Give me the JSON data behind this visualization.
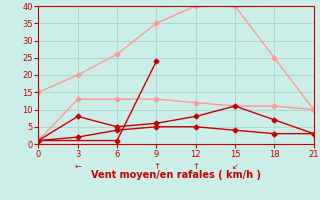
{
  "xlabel": "Vent moyen/en rafales ( km/h )",
  "background_color": "#cceee8",
  "grid_color": "#aad8d0",
  "xlim": [
    0,
    21
  ],
  "ylim": [
    0,
    40
  ],
  "xticks": [
    0,
    3,
    6,
    9,
    12,
    15,
    18,
    21
  ],
  "yticks": [
    0,
    5,
    10,
    15,
    20,
    25,
    30,
    35,
    40
  ],
  "line_light_high": {
    "x": [
      0,
      3,
      6,
      9,
      12,
      15,
      18,
      21
    ],
    "y": [
      15,
      20,
      26,
      35,
      40,
      40,
      25,
      10
    ],
    "color": "#ff9999",
    "lw": 1.0
  },
  "line_light_flat": {
    "x": [
      0,
      3,
      6,
      9,
      12,
      15,
      18,
      21
    ],
    "y": [
      1,
      13,
      13,
      13,
      12,
      11,
      11,
      10
    ],
    "color": "#ff9999",
    "lw": 1.0
  },
  "line_dark_spike": {
    "x": [
      0,
      6,
      9
    ],
    "y": [
      1,
      1,
      24
    ],
    "color": "#cc0000",
    "lw": 1.0
  },
  "line_dark_mid": {
    "x": [
      0,
      3,
      6,
      9,
      12,
      15,
      18,
      21
    ],
    "y": [
      1,
      8,
      5,
      6,
      8,
      11,
      7,
      3
    ],
    "color": "#cc0000",
    "lw": 1.0
  },
  "line_dark_low": {
    "x": [
      0,
      3,
      6,
      9,
      12,
      15,
      18,
      21
    ],
    "y": [
      1,
      2,
      4,
      5,
      5,
      4,
      3,
      3
    ],
    "color": "#cc0000",
    "lw": 1.0
  },
  "marker_style": "D",
  "marker_size": 2.5,
  "tick_color": "#cc0000",
  "tick_fontsize": 6,
  "xlabel_color": "#cc0000",
  "xlabel_fontsize": 7,
  "spine_color": "#cc0000",
  "arrow_annotations": [
    {
      "x": 3,
      "symbol": "←"
    },
    {
      "x": 9,
      "symbol": "↑"
    },
    {
      "x": 12,
      "symbol": "↑"
    },
    {
      "x": 15,
      "symbol": "↙"
    }
  ],
  "arrow_color": "#cc0000",
  "arrow_fontsize": 6
}
